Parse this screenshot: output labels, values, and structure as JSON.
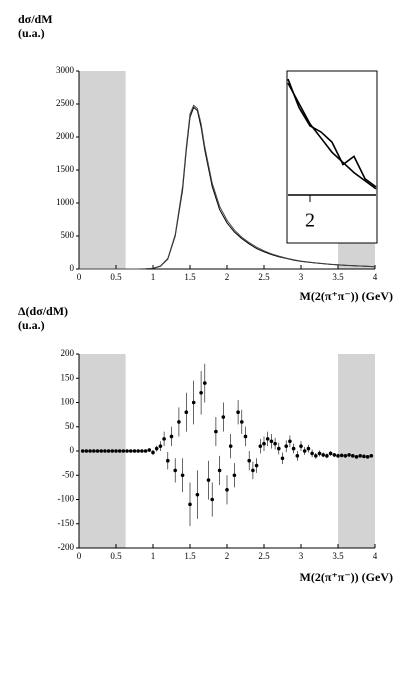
{
  "chart_data": [
    {
      "type": "line",
      "ylabel": "dσ/dM",
      "ylabel_unit": "(u.a.)",
      "xlabel": "M(2(π⁺π⁻)) (GeV)",
      "xlim": [
        0,
        4
      ],
      "ylim": [
        0,
        3000
      ],
      "xticks": [
        0,
        0.5,
        1,
        1.5,
        2,
        2.5,
        3,
        3.5,
        4
      ],
      "yticks": [
        0,
        500,
        1000,
        1500,
        2000,
        2500,
        3000
      ],
      "shaded_x": [
        [
          0,
          0.63
        ],
        [
          3.5,
          4
        ]
      ],
      "x": [
        0,
        0.2,
        0.4,
        0.6,
        0.8,
        0.9,
        1.0,
        1.1,
        1.2,
        1.3,
        1.4,
        1.45,
        1.5,
        1.55,
        1.6,
        1.65,
        1.7,
        1.8,
        1.9,
        2.0,
        2.1,
        2.2,
        2.3,
        2.4,
        2.5,
        2.6,
        2.7,
        2.8,
        2.9,
        3.0,
        3.2,
        3.4,
        3.6,
        3.8,
        4.0
      ],
      "series": [
        {
          "color": "#000000",
          "values": [
            0,
            0,
            0,
            0,
            0,
            2,
            10,
            40,
            150,
            500,
            1200,
            1800,
            2300,
            2450,
            2400,
            2150,
            1800,
            1250,
            900,
            700,
            560,
            460,
            380,
            310,
            260,
            220,
            185,
            160,
            135,
            115,
            90,
            70,
            55,
            45,
            35
          ]
        },
        {
          "color": "#444444",
          "values": [
            0,
            0,
            0,
            0,
            0,
            3,
            12,
            45,
            160,
            520,
            1250,
            1850,
            2350,
            2480,
            2430,
            2200,
            1850,
            1300,
            950,
            740,
            590,
            480,
            400,
            330,
            275,
            230,
            195,
            165,
            140,
            120,
            92,
            72,
            57,
            46,
            36
          ]
        }
      ]
    },
    {
      "type": "line",
      "xlim": [
        1.9,
        2.3
      ],
      "ylim": [
        350,
        950
      ],
      "xticks": [
        {
          "value": 2,
          "label": "2"
        }
      ],
      "x": [
        1.9,
        1.95,
        2.0,
        2.05,
        2.1,
        2.15,
        2.2,
        2.25,
        2.3
      ],
      "series": [
        {
          "color": "#000000",
          "values": [
            900,
            800,
            700,
            630,
            560,
            510,
            460,
            420,
            380
          ]
        },
        {
          "color": "#000000",
          "values": [
            920,
            780,
            690,
            660,
            610,
            500,
            540,
            430,
            390
          ]
        }
      ]
    },
    {
      "type": "scatter",
      "ylabel": "Δ(dσ/dM)",
      "ylabel_unit": "(u.a.)",
      "xlabel": "M(2(π⁺π⁻)) (GeV)",
      "xlim": [
        0,
        4
      ],
      "ylim": [
        -200,
        200
      ],
      "xticks": [
        0,
        0.5,
        1,
        1.5,
        2,
        2.5,
        3,
        3.5,
        4
      ],
      "yticks": [
        -200,
        -150,
        -100,
        -50,
        0,
        50,
        100,
        150,
        200
      ],
      "shaded_x": [
        [
          0,
          0.63
        ],
        [
          3.5,
          4
        ]
      ],
      "color": "#000000",
      "x": [
        0.05,
        0.1,
        0.15,
        0.2,
        0.25,
        0.3,
        0.35,
        0.4,
        0.45,
        0.5,
        0.55,
        0.6,
        0.65,
        0.7,
        0.75,
        0.8,
        0.85,
        0.9,
        0.95,
        1.0,
        1.05,
        1.1,
        1.15,
        1.2,
        1.25,
        1.3,
        1.35,
        1.4,
        1.45,
        1.5,
        1.55,
        1.6,
        1.65,
        1.7,
        1.75,
        1.8,
        1.85,
        1.9,
        1.95,
        2.0,
        2.05,
        2.1,
        2.15,
        2.2,
        2.25,
        2.3,
        2.35,
        2.4,
        2.45,
        2.5,
        2.55,
        2.6,
        2.65,
        2.7,
        2.75,
        2.8,
        2.85,
        2.9,
        2.95,
        3.0,
        3.05,
        3.1,
        3.15,
        3.2,
        3.25,
        3.3,
        3.35,
        3.4,
        3.45,
        3.5,
        3.55,
        3.6,
        3.65,
        3.7,
        3.75,
        3.8,
        3.85,
        3.9,
        3.95
      ],
      "values": [
        0,
        0,
        0,
        0,
        0,
        0,
        0,
        0,
        0,
        0,
        0,
        0,
        0,
        0,
        0,
        0,
        0,
        0,
        2,
        -3,
        5,
        10,
        25,
        -20,
        30,
        -40,
        60,
        -50,
        80,
        -110,
        100,
        -90,
        120,
        140,
        -60,
        -100,
        40,
        -40,
        70,
        -80,
        10,
        -50,
        80,
        60,
        30,
        -20,
        -40,
        -30,
        10,
        15,
        25,
        20,
        15,
        5,
        -15,
        10,
        20,
        5,
        -10,
        10,
        0,
        5,
        -5,
        -10,
        -5,
        -8,
        -10,
        -5,
        -8,
        -10,
        -9,
        -10,
        -8,
        -10,
        -12,
        -10,
        -11,
        -12,
        -10
      ],
      "errors": [
        3,
        3,
        3,
        3,
        3,
        3,
        3,
        3,
        3,
        3,
        3,
        3,
        3,
        3,
        3,
        3,
        3,
        3,
        4,
        5,
        6,
        10,
        15,
        18,
        20,
        25,
        30,
        35,
        40,
        45,
        45,
        50,
        45,
        40,
        40,
        35,
        30,
        30,
        30,
        30,
        25,
        25,
        25,
        25,
        20,
        20,
        18,
        15,
        15,
        15,
        15,
        15,
        12,
        12,
        12,
        12,
        12,
        10,
        10,
        10,
        8,
        8,
        8,
        6,
        6,
        5,
        5,
        5,
        4,
        4,
        4,
        4,
        4,
        3,
        3,
        3,
        3,
        3,
        3
      ]
    }
  ]
}
